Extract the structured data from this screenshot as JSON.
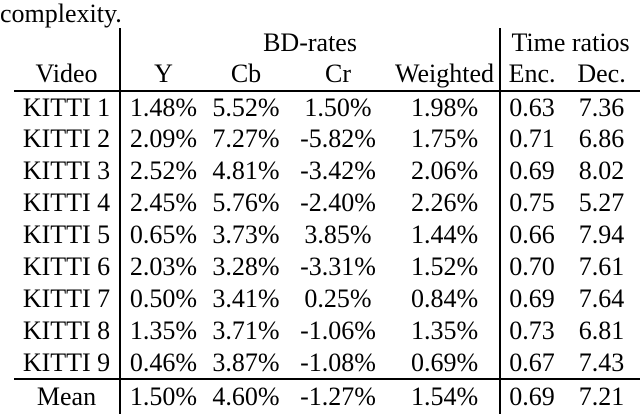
{
  "caption": "complexity.",
  "colors": {
    "text": "#000000",
    "background": "#ffffff",
    "rule": "#000000"
  },
  "table": {
    "group_headers": {
      "bd_rates": "BD-rates",
      "time_ratios": "Time ratios"
    },
    "columns": {
      "video": "Video",
      "y": "Y",
      "cb": "Cb",
      "cr": "Cr",
      "weighted": "Weighted",
      "enc": "Enc.",
      "dec": "Dec."
    },
    "rows": [
      {
        "video": "KITTI 1",
        "y": "1.48%",
        "cb": "5.52%",
        "cr": "1.50%",
        "weighted": "1.98%",
        "enc": "0.63",
        "dec": "7.36"
      },
      {
        "video": "KITTI 2",
        "y": "2.09%",
        "cb": "7.27%",
        "cr": "-5.82%",
        "weighted": "1.75%",
        "enc": "0.71",
        "dec": "6.86"
      },
      {
        "video": "KITTI 3",
        "y": "2.52%",
        "cb": "4.81%",
        "cr": "-3.42%",
        "weighted": "2.06%",
        "enc": "0.69",
        "dec": "8.02"
      },
      {
        "video": "KITTI 4",
        "y": "2.45%",
        "cb": "5.76%",
        "cr": "-2.40%",
        "weighted": "2.26%",
        "enc": "0.75",
        "dec": "5.27"
      },
      {
        "video": "KITTI 5",
        "y": "0.65%",
        "cb": "3.73%",
        "cr": "3.85%",
        "weighted": "1.44%",
        "enc": "0.66",
        "dec": "7.94"
      },
      {
        "video": "KITTI 6",
        "y": "2.03%",
        "cb": "3.28%",
        "cr": "-3.31%",
        "weighted": "1.52%",
        "enc": "0.70",
        "dec": "7.61"
      },
      {
        "video": "KITTI 7",
        "y": "0.50%",
        "cb": "3.41%",
        "cr": "0.25%",
        "weighted": "0.84%",
        "enc": "0.69",
        "dec": "7.64"
      },
      {
        "video": "KITTI 8",
        "y": "1.35%",
        "cb": "3.71%",
        "cr": "-1.06%",
        "weighted": "1.35%",
        "enc": "0.73",
        "dec": "6.81"
      },
      {
        "video": "KITTI 9",
        "y": "0.46%",
        "cb": "3.87%",
        "cr": "-1.08%",
        "weighted": "0.69%",
        "enc": "0.67",
        "dec": "7.43"
      }
    ],
    "mean": {
      "video": "Mean",
      "y": "1.50%",
      "cb": "4.60%",
      "cr": "-1.27%",
      "weighted": "1.54%",
      "enc": "0.69",
      "dec": "7.21"
    }
  }
}
